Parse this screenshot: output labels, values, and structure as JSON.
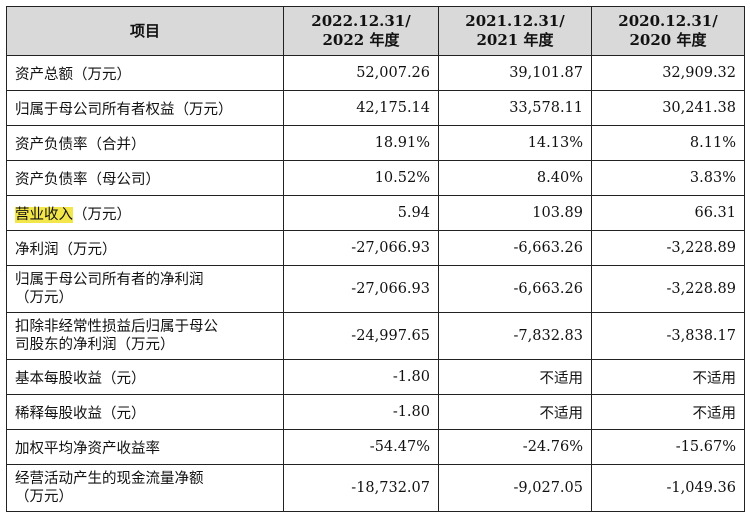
{
  "table": {
    "headers": [
      {
        "line1": "项目",
        "line2": ""
      },
      {
        "line1": "2022.12.31/",
        "line2": "2022 年度"
      },
      {
        "line1": "2021.12.31/",
        "line2": "2021 年度"
      },
      {
        "line1": "2020.12.31/",
        "line2": "2020 年度"
      }
    ],
    "rows": [
      {
        "label": "资产总额（万元）",
        "v2022": "52,007.26",
        "v2021": "39,101.87",
        "v2020": "32,909.32"
      },
      {
        "label": "归属于母公司所有者权益（万元）",
        "v2022": "42,175.14",
        "v2021": "33,578.11",
        "v2020": "30,241.38"
      },
      {
        "label": "资产负债率（合并）",
        "v2022": "18.91%",
        "v2021": "14.13%",
        "v2020": "8.11%"
      },
      {
        "label": "资产负债率（母公司）",
        "v2022": "10.52%",
        "v2021": "8.40%",
        "v2020": "3.83%"
      },
      {
        "label_highlight": "营业收入",
        "label_rest": "（万元）",
        "v2022": "5.94",
        "v2021": "103.89",
        "v2020": "66.31"
      },
      {
        "label": "净利润（万元）",
        "v2022": "-27,066.93",
        "v2021": "-6,663.26",
        "v2020": "-3,228.89"
      },
      {
        "label_line1": "归属于母公司所有者的净利润",
        "label_line2": "（万元）",
        "v2022": "-27,066.93",
        "v2021": "-6,663.26",
        "v2020": "-3,228.89"
      },
      {
        "label_line1": "扣除非经常性损益后归属于母公",
        "label_line2": "司股东的净利润（万元）",
        "v2022": "-24,997.65",
        "v2021": "-7,832.83",
        "v2020": "-3,838.17"
      },
      {
        "label": "基本每股收益（元）",
        "v2022": "-1.80",
        "v2021": "不适用",
        "v2020": "不适用"
      },
      {
        "label": "稀释每股收益（元）",
        "v2022": "-1.80",
        "v2021": "不适用",
        "v2020": "不适用"
      },
      {
        "label": "加权平均净资产收益率",
        "v2022": "-54.47%",
        "v2021": "-24.76%",
        "v2020": "-15.67%"
      },
      {
        "label_line1": "经营活动产生的现金流量净额",
        "label_line2": "（万元）",
        "v2022": "-18,732.07",
        "v2021": "-9,027.05",
        "v2020": "-1,049.36"
      }
    ]
  }
}
